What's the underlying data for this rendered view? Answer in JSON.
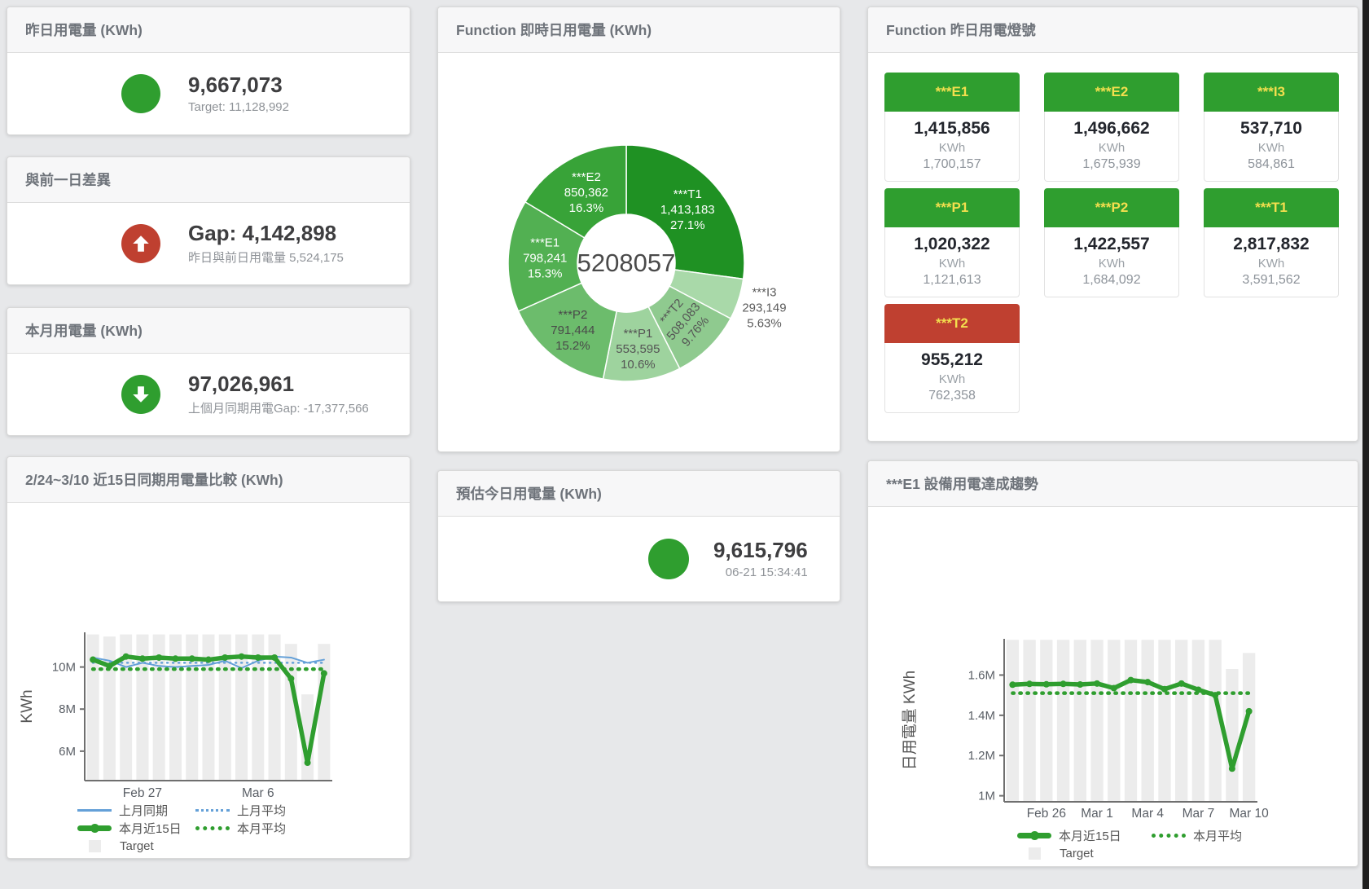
{
  "theme": {
    "green": "#2f9e2f",
    "red": "#bf4030",
    "blue": "#64a0d8",
    "tile_header_text": "#f3df4e",
    "target_bar": "#ececec"
  },
  "panels": {
    "yesterday": {
      "title": "昨日用電量 (KWh)",
      "value": "9,667,073",
      "subtext": "Target: 11,128,992",
      "status_icon": "green-circle"
    },
    "gap": {
      "title": "與前一日差異",
      "value": "Gap: 4,142,898",
      "subtext": "昨日與前日用電量 5,524,175",
      "status_icon": "red-up-arrow"
    },
    "month": {
      "title": "本月用電量 (KWh)",
      "value": "97,026,961",
      "subtext": "上個月同期用電Gap: -17,377,566",
      "status_icon": "green-down-arrow"
    },
    "forecast": {
      "title": "預估今日用電量 (KWh)",
      "value": "9,615,796",
      "subtext": "06-21 15:34:41",
      "status_icon": "green-circle"
    },
    "lights": {
      "title": "Function 昨日用電燈號",
      "unit": "KWh",
      "tiles": [
        {
          "label": "***E1",
          "value": "1,415,856",
          "unit": "KWh",
          "target": "1,700,157",
          "status": "green"
        },
        {
          "label": "***E2",
          "value": "1,496,662",
          "unit": "KWh",
          "target": "1,675,939",
          "status": "green"
        },
        {
          "label": "***I3",
          "value": "537,710",
          "unit": "KWh",
          "target": "584,861",
          "status": "green"
        },
        {
          "label": "***P1",
          "value": "1,020,322",
          "unit": "KWh",
          "target": "1,121,613",
          "status": "green"
        },
        {
          "label": "***P2",
          "value": "1,422,557",
          "unit": "KWh",
          "target": "1,684,092",
          "status": "green"
        },
        {
          "label": "***T1",
          "value": "2,817,832",
          "unit": "KWh",
          "target": "3,591,562",
          "status": "green"
        },
        {
          "label": "***T2",
          "value": "955,212",
          "unit": "KWh",
          "target": "762,358",
          "status": "red"
        }
      ]
    }
  },
  "chart_data": [
    {
      "type": "pie",
      "title": "Function 即時日用電量 (KWh)",
      "center_total": "5208057",
      "legend_position": "none",
      "slices": [
        {
          "name": "***T1",
          "value": 1413183,
          "value_label": "1,413,183",
          "pct_label": "27.1%",
          "color": "#1f9123",
          "label_pos": "inside",
          "label_color": "#ffffff"
        },
        {
          "name": "***I3",
          "value": 293149,
          "value_label": "293,149",
          "pct_label": "5.63%",
          "color": "#a9d9a9",
          "label_pos": "outside",
          "label_color": "#5b5b5b",
          "label_r": 178
        },
        {
          "name": "***T2",
          "value": 508083,
          "value_label": "508,083",
          "pct_label": "9.76%",
          "color": "#8fca8f",
          "label_pos": "inside",
          "label_color": "#555555",
          "rotate": -50
        },
        {
          "name": "***P1",
          "value": 553595,
          "value_label": "553,595",
          "pct_label": "10.6%",
          "color": "#9ed39e",
          "label_pos": "inside",
          "label_color": "#555555",
          "label_r": 106
        },
        {
          "name": "***P2",
          "value": 791444,
          "value_label": "791,444",
          "pct_label": "15.2%",
          "color": "#6cbc6c",
          "label_pos": "inside",
          "label_color": "#4a4a4a",
          "label_r": 105
        },
        {
          "name": "***E1",
          "value": 798241,
          "value_label": "798,241",
          "pct_label": "15.3%",
          "color": "#52b052",
          "label_pos": "inside",
          "label_color": "#ffffff"
        },
        {
          "name": "***E2",
          "value": 850362,
          "value_label": "850,362",
          "pct_label": "16.3%",
          "color": "#38a338",
          "label_pos": "inside",
          "label_color": "#ffffff"
        }
      ]
    },
    {
      "type": "line",
      "title": "2/24~3/10 近15日同期用電量比較 (KWh)",
      "ylabel": "KWh",
      "grid": false,
      "categories": [
        "2/24",
        "2/25",
        "2/26",
        "2/27",
        "2/28",
        "3/1",
        "3/2",
        "3/3",
        "3/4",
        "3/5",
        "3/6",
        "3/7",
        "3/8",
        "3/9",
        "3/10"
      ],
      "n": 15,
      "ylim": [
        4600000,
        11650000
      ],
      "yticks": [
        {
          "value": 6000000,
          "label": "6M"
        },
        {
          "value": 8000000,
          "label": "8M"
        },
        {
          "value": 10000000,
          "label": "10M"
        }
      ],
      "xticks": [
        {
          "index": 3,
          "label": "Feb 27"
        },
        {
          "index": 10,
          "label": "Mar 6"
        }
      ],
      "series": [
        {
          "name": "Target",
          "type": "bar",
          "color": "#ececec",
          "values": [
            11550000,
            11450000,
            11550000,
            11550000,
            11550000,
            11550000,
            11550000,
            11550000,
            11550000,
            11550000,
            11550000,
            11550000,
            11100000,
            8700000,
            11100000
          ]
        },
        {
          "name": "上月平均",
          "type": "line",
          "style": "dotted",
          "color": "#64a0d8",
          "width": 2.5,
          "const_value": 10200000
        },
        {
          "name": "上月同期",
          "type": "line",
          "style": "solid",
          "color": "#64a0d8",
          "width": 2,
          "values": [
            10450000,
            10300000,
            10000000,
            10200000,
            10050000,
            10000000,
            10050000,
            10100000,
            10300000,
            9950000,
            10300000,
            10500000,
            10450000,
            10200000,
            10350000
          ]
        },
        {
          "name": "本月平均",
          "type": "line",
          "style": "dotted",
          "color": "#2f9e2f",
          "width": 4.5,
          "const_value": 9900000
        },
        {
          "name": "本月近15日",
          "type": "line",
          "style": "solid",
          "color": "#2f9e2f",
          "width": 5.5,
          "marker": true,
          "values": [
            10350000,
            10050000,
            10500000,
            10400000,
            10450000,
            10400000,
            10400000,
            10350000,
            10450000,
            10500000,
            10450000,
            10450000,
            9450000,
            5450000,
            9700000
          ]
        }
      ],
      "legend_rows": [
        [
          {
            "label": "上月同期",
            "swatch": "line",
            "dash": false,
            "color": "#64a0d8"
          },
          {
            "label": "上月平均",
            "swatch": "line",
            "dash": true,
            "color": "#64a0d8"
          }
        ],
        [
          {
            "label": "本月近15日",
            "swatch": "thickline",
            "color": "#2f9e2f"
          },
          {
            "label": "本月平均",
            "swatch": "line",
            "dash": true,
            "thick": true,
            "color": "#2f9e2f"
          }
        ],
        [
          {
            "label": "Target",
            "swatch": "square",
            "color": "#ececec"
          }
        ]
      ]
    },
    {
      "type": "line",
      "title": "***E1 設備用電達成趨勢",
      "ylabel": "日用電量 KWh",
      "grid": false,
      "categories": [
        "2/24",
        "2/25",
        "2/26",
        "2/27",
        "2/28",
        "3/1",
        "3/2",
        "3/3",
        "3/4",
        "3/5",
        "3/6",
        "3/7",
        "3/8",
        "3/9",
        "3/10"
      ],
      "n": 15,
      "ylim": [
        970000,
        1780000
      ],
      "yticks": [
        {
          "value": 1000000,
          "label": "1M"
        },
        {
          "value": 1200000,
          "label": "1.2M"
        },
        {
          "value": 1400000,
          "label": "1.4M"
        },
        {
          "value": 1600000,
          "label": "1.6M"
        }
      ],
      "xticks": [
        {
          "index": 2,
          "label": "Feb 26"
        },
        {
          "index": 5,
          "label": "Mar 1"
        },
        {
          "index": 8,
          "label": "Mar 4"
        },
        {
          "index": 11,
          "label": "Mar 7"
        },
        {
          "index": 14,
          "label": "Mar 10"
        }
      ],
      "series": [
        {
          "name": "Target",
          "type": "bar",
          "color": "#ececec",
          "values": [
            1775000,
            1775000,
            1775000,
            1775000,
            1775000,
            1775000,
            1775000,
            1775000,
            1775000,
            1775000,
            1775000,
            1775000,
            1775000,
            1630000,
            1710000
          ]
        },
        {
          "name": "本月平均",
          "type": "line",
          "style": "dotted",
          "color": "#2f9e2f",
          "width": 4.5,
          "const_value": 1510000
        },
        {
          "name": "本月近15日",
          "type": "line",
          "style": "solid",
          "color": "#2f9e2f",
          "width": 5.5,
          "marker": true,
          "values": [
            1552000,
            1556000,
            1554000,
            1556000,
            1553000,
            1558000,
            1535000,
            1575000,
            1565000,
            1530000,
            1558000,
            1527000,
            1500000,
            1135000,
            1420000
          ]
        }
      ],
      "legend_rows": [
        [
          {
            "label": "本月近15日",
            "swatch": "thickline",
            "color": "#2f9e2f"
          },
          {
            "label": "本月平均",
            "swatch": "line",
            "dash": true,
            "thick": true,
            "color": "#2f9e2f"
          }
        ],
        [
          {
            "label": "Target",
            "swatch": "square",
            "color": "#ececec"
          }
        ]
      ]
    }
  ]
}
